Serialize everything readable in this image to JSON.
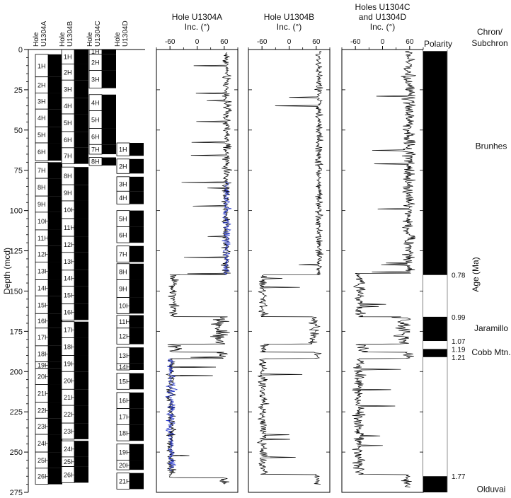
{
  "chart_data": {
    "type": "line",
    "ylabel": "Depth (mcd)",
    "ylim": [
      0,
      275
    ],
    "y_ticks": [
      "0",
      "25",
      "50",
      "75",
      "100",
      "125",
      "150",
      "175",
      "200",
      "225",
      "250",
      "275"
    ],
    "core_columns": [
      {
        "label": "Hole U1304A",
        "label_line1": "Hole",
        "label_line2": "U1304A",
        "cores": [
          {
            "label": "1H",
            "top": 3,
            "bottom": 17
          },
          {
            "label": "2H",
            "top": 17,
            "bottom": 27
          },
          {
            "label": "3H",
            "top": 27,
            "bottom": 37
          },
          {
            "label": "4H",
            "top": 37,
            "bottom": 48
          },
          {
            "label": "5H",
            "top": 48,
            "bottom": 58
          },
          {
            "label": "6H",
            "top": 58,
            "bottom": 69
          },
          {
            "label": "7H",
            "top": 70,
            "bottom": 80
          },
          {
            "label": "8H",
            "top": 80,
            "bottom": 91
          },
          {
            "label": "9H",
            "top": 91,
            "bottom": 101
          },
          {
            "label": "10H",
            "top": 101,
            "bottom": 112
          },
          {
            "label": "11H",
            "top": 112,
            "bottom": 122
          },
          {
            "label": "12H",
            "top": 122,
            "bottom": 132
          },
          {
            "label": "13H",
            "top": 132,
            "bottom": 143
          },
          {
            "label": "14H",
            "top": 143,
            "bottom": 153
          },
          {
            "label": "15H",
            "top": 153,
            "bottom": 164
          },
          {
            "label": "16H",
            "top": 164,
            "bottom": 173
          },
          {
            "label": "17H",
            "top": 173,
            "bottom": 184
          },
          {
            "label": "18H",
            "top": 184,
            "bottom": 194
          },
          {
            "label": "19H",
            "top": 194,
            "bottom": 198
          },
          {
            "label": "20H",
            "top": 198,
            "bottom": 208
          },
          {
            "label": "21H",
            "top": 208,
            "bottom": 219
          },
          {
            "label": "22H",
            "top": 219,
            "bottom": 229
          },
          {
            "label": "23H",
            "top": 229,
            "bottom": 239
          },
          {
            "label": "24H",
            "top": 239,
            "bottom": 250
          },
          {
            "label": "25H",
            "top": 250,
            "bottom": 260
          },
          {
            "label": "26H",
            "top": 260,
            "bottom": 270
          }
        ]
      },
      {
        "label": "Hole U1304B",
        "label_line1": "Hole",
        "label_line2": "U1304B",
        "cores": [
          {
            "label": "1H",
            "top": 0,
            "bottom": 9
          },
          {
            "label": "2H",
            "top": 9,
            "bottom": 19
          },
          {
            "label": "3H",
            "top": 19,
            "bottom": 30
          },
          {
            "label": "4H",
            "top": 30,
            "bottom": 40
          },
          {
            "label": "5H",
            "top": 40,
            "bottom": 51
          },
          {
            "label": "6H",
            "top": 51,
            "bottom": 61
          },
          {
            "label": "7H",
            "top": 61,
            "bottom": 71
          },
          {
            "label": "8H",
            "top": 73,
            "bottom": 84
          },
          {
            "label": "9H",
            "top": 84,
            "bottom": 94
          },
          {
            "label": "10H",
            "top": 94,
            "bottom": 105
          },
          {
            "label": "11H",
            "top": 105,
            "bottom": 116
          },
          {
            "label": "12H",
            "top": 116,
            "bottom": 126
          },
          {
            "label": "13H",
            "top": 126,
            "bottom": 137
          },
          {
            "label": "14H",
            "top": 137,
            "bottom": 147
          },
          {
            "label": "15H",
            "top": 147,
            "bottom": 158
          },
          {
            "label": "16H",
            "top": 158,
            "bottom": 168
          },
          {
            "label": "17H",
            "top": 169,
            "bottom": 179
          },
          {
            "label": "18H",
            "top": 179,
            "bottom": 190
          },
          {
            "label": "19H",
            "top": 190,
            "bottom": 200
          },
          {
            "label": "20H",
            "top": 200,
            "bottom": 211
          },
          {
            "label": "21H",
            "top": 211,
            "bottom": 221
          },
          {
            "label": "22H",
            "top": 221,
            "bottom": 232
          },
          {
            "label": "23H",
            "top": 232,
            "bottom": 242
          },
          {
            "label": "24H",
            "top": 243,
            "bottom": 253
          },
          {
            "label": "25H",
            "top": 253,
            "bottom": 259
          },
          {
            "label": "26H",
            "top": 259,
            "bottom": 269
          }
        ]
      },
      {
        "label": "Hole U1304C",
        "label_line1": "Hole",
        "label_line2": "U1304C",
        "cores": [
          {
            "label": "1H",
            "top": 0,
            "bottom": 3
          },
          {
            "label": "2H",
            "top": 3,
            "bottom": 13
          },
          {
            "label": "3H",
            "top": 13,
            "bottom": 24
          },
          {
            "label": "4H",
            "top": 28,
            "bottom": 38
          },
          {
            "label": "5H",
            "top": 38,
            "bottom": 49
          },
          {
            "label": "6H",
            "top": 49,
            "bottom": 59
          },
          {
            "label": "7H",
            "top": 59,
            "bottom": 65
          },
          {
            "label": "8H",
            "top": 67,
            "bottom": 72
          }
        ]
      },
      {
        "label": "Hole U1304D",
        "label_line1": "Hole",
        "label_line2": "U1304D",
        "cores": [
          {
            "label": "1H",
            "top": 58,
            "bottom": 66
          },
          {
            "label": "2H",
            "top": 68,
            "bottom": 77
          },
          {
            "label": "3H",
            "top": 79,
            "bottom": 88
          },
          {
            "label": "4H",
            "top": 88,
            "bottom": 96
          },
          {
            "label": "5H",
            "top": 100,
            "bottom": 110
          },
          {
            "label": "6H",
            "top": 110,
            "bottom": 120
          },
          {
            "label": "7H",
            "top": 122,
            "bottom": 132
          },
          {
            "label": "8H",
            "top": 133,
            "bottom": 143
          },
          {
            "label": "9H",
            "top": 143,
            "bottom": 154
          },
          {
            "label": "10H",
            "top": 154,
            "bottom": 164
          },
          {
            "label": "11H",
            "top": 165,
            "bottom": 173
          },
          {
            "label": "12H",
            "top": 173,
            "bottom": 183
          },
          {
            "label": "13H",
            "top": 185,
            "bottom": 195
          },
          {
            "label": "14H",
            "top": 195,
            "bottom": 199
          },
          {
            "label": "15H",
            "top": 201,
            "bottom": 211
          },
          {
            "label": "16H",
            "top": 213,
            "bottom": 223
          },
          {
            "label": "17H",
            "top": 223,
            "bottom": 233
          },
          {
            "label": "18H",
            "top": 233,
            "bottom": 243
          },
          {
            "label": "19H",
            "top": 245,
            "bottom": 255
          },
          {
            "label": "20H",
            "top": 255,
            "bottom": 261
          },
          {
            "label": "21H",
            "top": 263,
            "bottom": 273
          }
        ]
      }
    ],
    "series": [
      {
        "name": "Hole U1304A",
        "title_line1": "Hole U1304A",
        "title_line2": "Inc. (°)",
        "xlim": [
          -90,
          90
        ],
        "x_ticks": [
          -60,
          0,
          60
        ],
        "segments": [
          {
            "from": 2,
            "to": 140,
            "base": 65,
            "amp": 14
          },
          {
            "from": 140,
            "to": 166,
            "base": -52,
            "amp": 16
          },
          {
            "from": 166,
            "to": 183,
            "base": 50,
            "amp": 30
          },
          {
            "from": 183,
            "to": 188,
            "base": -45,
            "amp": 30
          },
          {
            "from": 188,
            "to": 192,
            "base": 55,
            "amp": 20
          },
          {
            "from": 192,
            "to": 266,
            "base": -58,
            "amp": 15
          },
          {
            "from": 266,
            "to": 270,
            "base": 60,
            "amp": 18
          }
        ]
      },
      {
        "name": "Hole U1304B",
        "title_line1": "Hole U1304B",
        "title_line2": "Inc. (°)",
        "xlim": [
          -90,
          90
        ],
        "x_ticks": [
          -60,
          0,
          60
        ],
        "segments": [
          {
            "from": 1,
            "to": 140,
            "base": 66,
            "amp": 12
          },
          {
            "from": 140,
            "to": 166,
            "base": -58,
            "amp": 14
          },
          {
            "from": 166,
            "to": 183,
            "base": 55,
            "amp": 18
          },
          {
            "from": 183,
            "to": 188,
            "base": -55,
            "amp": 15
          },
          {
            "from": 188,
            "to": 192,
            "base": 60,
            "amp": 15
          },
          {
            "from": 192,
            "to": 264,
            "base": -58,
            "amp": 15
          },
          {
            "from": 264,
            "to": 270,
            "base": 62,
            "amp": 12
          }
        ]
      },
      {
        "name": "Holes U1304C and U1304D",
        "title_line1": "Holes U1304C",
        "title_line2": "and U1304D",
        "title_line3": "Inc. (°)",
        "xlim": [
          -90,
          90
        ],
        "x_ticks": [
          -60,
          0,
          60
        ],
        "segments": [
          {
            "from": 1,
            "to": 139,
            "base": 58,
            "amp": 20
          },
          {
            "from": 139,
            "to": 166,
            "base": -50,
            "amp": 20
          },
          {
            "from": 166,
            "to": 183,
            "base": 45,
            "amp": 28
          },
          {
            "from": 183,
            "to": 188,
            "base": -45,
            "amp": 25
          },
          {
            "from": 188,
            "to": 192,
            "base": 55,
            "amp": 20
          },
          {
            "from": 192,
            "to": 264,
            "base": -52,
            "amp": 20
          },
          {
            "from": 264,
            "to": 272,
            "base": 55,
            "amp": 15
          }
        ]
      }
    ],
    "polarity": {
      "label": "Polarity",
      "normal_intervals": [
        [
          1,
          140
        ],
        [
          166,
          181
        ],
        [
          186,
          191
        ],
        [
          265,
          275
        ]
      ]
    },
    "age_axis": {
      "label": "Age (Ma)",
      "ticks": [
        {
          "depth": 140,
          "label": "0.78"
        },
        {
          "depth": 166,
          "label": "0.99"
        },
        {
          "depth": 181,
          "label": "1.07"
        },
        {
          "depth": 186,
          "label": "1.19"
        },
        {
          "depth": 191,
          "label": "1.21"
        },
        {
          "depth": 265,
          "label": "1.77"
        }
      ]
    },
    "chrons": {
      "title_line1": "Chron/",
      "title_line2": "Subchron",
      "items": [
        {
          "label": "Brunhes",
          "depth": 60
        },
        {
          "label": "Jaramillo",
          "depth": 173
        },
        {
          "label": "Cobb Mtn.",
          "depth": 188
        },
        {
          "label": "Olduvai",
          "depth": 273
        }
      ]
    }
  }
}
